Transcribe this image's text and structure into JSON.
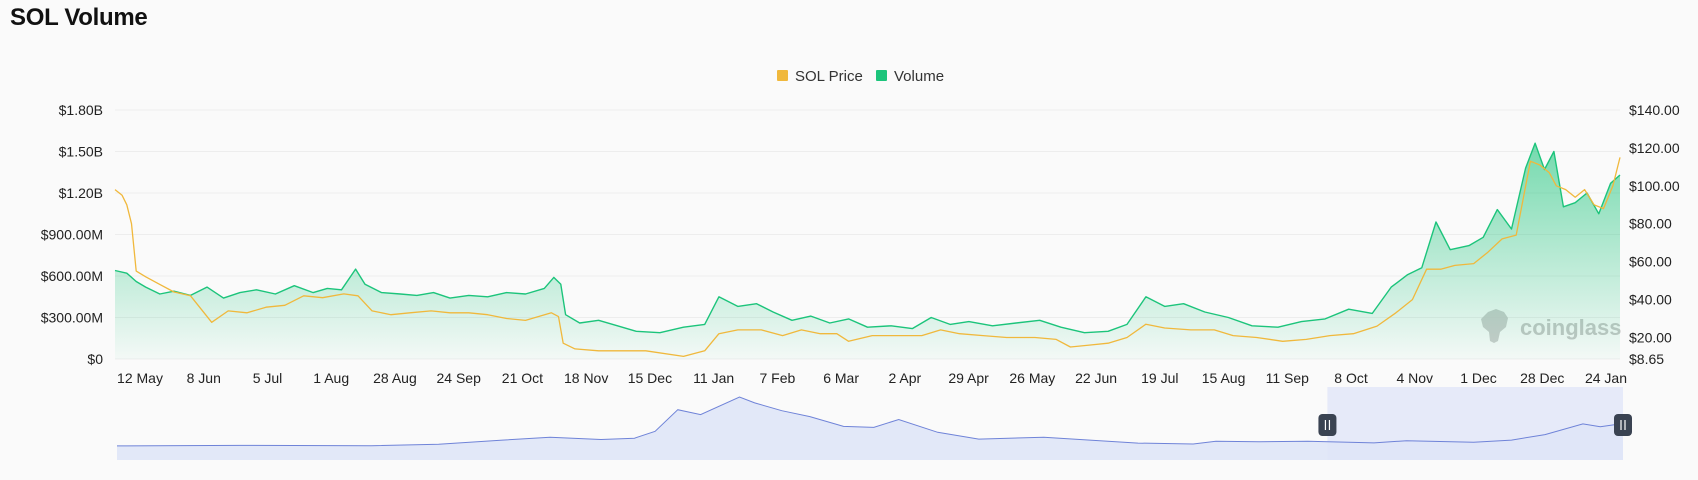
{
  "title": "SOL Volume",
  "watermark": "coinglass",
  "colors": {
    "price": "#f0b83c",
    "volume": "#1cc47b",
    "navigator_line": "#6f83d8",
    "navigator_fill": "#dfe5f7",
    "navigator_selected": "#e6eaf9",
    "grid": "#ededed",
    "background": "#fafafa"
  },
  "chart_data": {
    "type": "area",
    "title": "SOL Volume",
    "legend": {
      "position": "top-center",
      "entries": [
        "SOL Price",
        "Volume"
      ]
    },
    "grid": true,
    "x_tick_labels": [
      "12 May",
      "8 Jun",
      "5 Jul",
      "1 Aug",
      "28 Aug",
      "24 Sep",
      "21 Oct",
      "18 Nov",
      "15 Dec",
      "11 Jan",
      "7 Feb",
      "6 Mar",
      "2 Apr",
      "29 Apr",
      "26 May",
      "22 Jun",
      "19 Jul",
      "15 Aug",
      "11 Sep",
      "8 Oct",
      "4 Nov",
      "1 Dec",
      "28 Dec",
      "24 Jan"
    ],
    "y_left": {
      "label": "",
      "min": 0,
      "max": 1800000000,
      "ticks": [
        0,
        300000000,
        600000000,
        900000000,
        1200000000,
        1500000000,
        1800000000
      ],
      "tick_labels": [
        "$0",
        "$300.00M",
        "$600.00M",
        "$900.00M",
        "$1.20B",
        "$1.50B",
        "$1.80B"
      ]
    },
    "y_right": {
      "label": "",
      "min": 8.65,
      "max": 140,
      "ticks": [
        8.65,
        20,
        40,
        60,
        80,
        100,
        120,
        140
      ],
      "tick_labels": [
        "$8.65",
        "$20.00",
        "$40.00",
        "$60.00",
        "$80.00",
        "$100.00",
        "$120.00",
        "$140.00"
      ]
    },
    "x_range": [
      "2022-05-03",
      "2024-01-31"
    ],
    "series": [
      {
        "name": "Volume",
        "axis": "left",
        "style": "area",
        "points": [
          [
            "2022-05-03",
            640000000
          ],
          [
            "2022-05-08",
            620000000
          ],
          [
            "2022-05-12",
            560000000
          ],
          [
            "2022-05-16",
            520000000
          ],
          [
            "2022-05-22",
            470000000
          ],
          [
            "2022-05-28",
            490000000
          ],
          [
            "2022-06-04",
            460000000
          ],
          [
            "2022-06-11",
            520000000
          ],
          [
            "2022-06-18",
            440000000
          ],
          [
            "2022-06-25",
            480000000
          ],
          [
            "2022-07-02",
            500000000
          ],
          [
            "2022-07-10",
            470000000
          ],
          [
            "2022-07-18",
            530000000
          ],
          [
            "2022-07-26",
            480000000
          ],
          [
            "2022-08-01",
            510000000
          ],
          [
            "2022-08-07",
            500000000
          ],
          [
            "2022-08-13",
            650000000
          ],
          [
            "2022-08-17",
            540000000
          ],
          [
            "2022-08-24",
            480000000
          ],
          [
            "2022-09-01",
            470000000
          ],
          [
            "2022-09-08",
            460000000
          ],
          [
            "2022-09-15",
            480000000
          ],
          [
            "2022-09-22",
            440000000
          ],
          [
            "2022-09-30",
            460000000
          ],
          [
            "2022-10-08",
            450000000
          ],
          [
            "2022-10-16",
            480000000
          ],
          [
            "2022-10-24",
            470000000
          ],
          [
            "2022-11-01",
            510000000
          ],
          [
            "2022-11-05",
            590000000
          ],
          [
            "2022-11-08",
            540000000
          ],
          [
            "2022-11-10",
            320000000
          ],
          [
            "2022-11-16",
            260000000
          ],
          [
            "2022-11-24",
            280000000
          ],
          [
            "2022-12-02",
            240000000
          ],
          [
            "2022-12-10",
            200000000
          ],
          [
            "2022-12-20",
            190000000
          ],
          [
            "2022-12-30",
            230000000
          ],
          [
            "2023-01-08",
            250000000
          ],
          [
            "2023-01-14",
            450000000
          ],
          [
            "2023-01-22",
            380000000
          ],
          [
            "2023-01-30",
            400000000
          ],
          [
            "2023-02-06",
            340000000
          ],
          [
            "2023-02-14",
            280000000
          ],
          [
            "2023-02-22",
            310000000
          ],
          [
            "2023-03-02",
            260000000
          ],
          [
            "2023-03-10",
            290000000
          ],
          [
            "2023-03-18",
            230000000
          ],
          [
            "2023-03-28",
            240000000
          ],
          [
            "2023-04-06",
            220000000
          ],
          [
            "2023-04-14",
            300000000
          ],
          [
            "2023-04-22",
            250000000
          ],
          [
            "2023-04-30",
            270000000
          ],
          [
            "2023-05-10",
            240000000
          ],
          [
            "2023-05-20",
            260000000
          ],
          [
            "2023-05-30",
            280000000
          ],
          [
            "2023-06-08",
            230000000
          ],
          [
            "2023-06-18",
            190000000
          ],
          [
            "2023-06-28",
            200000000
          ],
          [
            "2023-07-06",
            250000000
          ],
          [
            "2023-07-14",
            450000000
          ],
          [
            "2023-07-22",
            380000000
          ],
          [
            "2023-07-30",
            400000000
          ],
          [
            "2023-08-08",
            340000000
          ],
          [
            "2023-08-18",
            300000000
          ],
          [
            "2023-08-28",
            240000000
          ],
          [
            "2023-09-08",
            230000000
          ],
          [
            "2023-09-18",
            270000000
          ],
          [
            "2023-09-28",
            290000000
          ],
          [
            "2023-10-08",
            360000000
          ],
          [
            "2023-10-18",
            330000000
          ],
          [
            "2023-10-26",
            520000000
          ],
          [
            "2023-11-02",
            610000000
          ],
          [
            "2023-11-08",
            660000000
          ],
          [
            "2023-11-14",
            990000000
          ],
          [
            "2023-11-20",
            790000000
          ],
          [
            "2023-11-28",
            820000000
          ],
          [
            "2023-12-04",
            880000000
          ],
          [
            "2023-12-10",
            1080000000
          ],
          [
            "2023-12-16",
            940000000
          ],
          [
            "2023-12-22",
            1380000000
          ],
          [
            "2023-12-26",
            1560000000
          ],
          [
            "2023-12-30",
            1370000000
          ],
          [
            "2024-01-03",
            1500000000
          ],
          [
            "2024-01-07",
            1100000000
          ],
          [
            "2024-01-12",
            1130000000
          ],
          [
            "2024-01-17",
            1200000000
          ],
          [
            "2024-01-22",
            1050000000
          ],
          [
            "2024-01-27",
            1270000000
          ],
          [
            "2024-01-31",
            1330000000
          ]
        ]
      },
      {
        "name": "SOL Price",
        "axis": "right",
        "style": "line",
        "points": [
          [
            "2022-05-03",
            98
          ],
          [
            "2022-05-06",
            95
          ],
          [
            "2022-05-08",
            90
          ],
          [
            "2022-05-10",
            80
          ],
          [
            "2022-05-12",
            55
          ],
          [
            "2022-05-16",
            52
          ],
          [
            "2022-05-22",
            48
          ],
          [
            "2022-05-28",
            44
          ],
          [
            "2022-06-04",
            42
          ],
          [
            "2022-06-13",
            28
          ],
          [
            "2022-06-20",
            34
          ],
          [
            "2022-06-28",
            33
          ],
          [
            "2022-07-06",
            36
          ],
          [
            "2022-07-14",
            37
          ],
          [
            "2022-07-22",
            42
          ],
          [
            "2022-07-30",
            41
          ],
          [
            "2022-08-08",
            43
          ],
          [
            "2022-08-14",
            42
          ],
          [
            "2022-08-20",
            34
          ],
          [
            "2022-08-28",
            32
          ],
          [
            "2022-09-05",
            33
          ],
          [
            "2022-09-14",
            34
          ],
          [
            "2022-09-22",
            33
          ],
          [
            "2022-09-30",
            33
          ],
          [
            "2022-10-08",
            32
          ],
          [
            "2022-10-16",
            30
          ],
          [
            "2022-10-24",
            29
          ],
          [
            "2022-11-04",
            33
          ],
          [
            "2022-11-07",
            31
          ],
          [
            "2022-11-09",
            17
          ],
          [
            "2022-11-14",
            14
          ],
          [
            "2022-11-24",
            13
          ],
          [
            "2022-12-04",
            13
          ],
          [
            "2022-12-14",
            13
          ],
          [
            "2022-12-30",
            10
          ],
          [
            "2023-01-08",
            13
          ],
          [
            "2023-01-14",
            22
          ],
          [
            "2023-01-22",
            24
          ],
          [
            "2023-02-01",
            24
          ],
          [
            "2023-02-10",
            21
          ],
          [
            "2023-02-18",
            24
          ],
          [
            "2023-02-26",
            22
          ],
          [
            "2023-03-05",
            22
          ],
          [
            "2023-03-10",
            18
          ],
          [
            "2023-03-20",
            21
          ],
          [
            "2023-04-01",
            21
          ],
          [
            "2023-04-10",
            21
          ],
          [
            "2023-04-18",
            24
          ],
          [
            "2023-04-26",
            22
          ],
          [
            "2023-05-06",
            21
          ],
          [
            "2023-05-16",
            20
          ],
          [
            "2023-05-28",
            20
          ],
          [
            "2023-06-06",
            19
          ],
          [
            "2023-06-12",
            15
          ],
          [
            "2023-06-20",
            16
          ],
          [
            "2023-06-28",
            17
          ],
          [
            "2023-07-06",
            20
          ],
          [
            "2023-07-14",
            27
          ],
          [
            "2023-07-22",
            25
          ],
          [
            "2023-08-02",
            24
          ],
          [
            "2023-08-12",
            24
          ],
          [
            "2023-08-20",
            21
          ],
          [
            "2023-08-30",
            20
          ],
          [
            "2023-09-10",
            18
          ],
          [
            "2023-09-20",
            19
          ],
          [
            "2023-09-30",
            21
          ],
          [
            "2023-10-10",
            22
          ],
          [
            "2023-10-20",
            26
          ],
          [
            "2023-10-28",
            33
          ],
          [
            "2023-11-04",
            40
          ],
          [
            "2023-11-10",
            56
          ],
          [
            "2023-11-16",
            56
          ],
          [
            "2023-11-22",
            58
          ],
          [
            "2023-11-30",
            59
          ],
          [
            "2023-12-06",
            65
          ],
          [
            "2023-12-12",
            72
          ],
          [
            "2023-12-18",
            74
          ],
          [
            "2023-12-24",
            113
          ],
          [
            "2023-12-28",
            111
          ],
          [
            "2024-01-01",
            107
          ],
          [
            "2024-01-04",
            100
          ],
          [
            "2024-01-08",
            98
          ],
          [
            "2024-01-12",
            94
          ],
          [
            "2024-01-16",
            98
          ],
          [
            "2024-01-20",
            90
          ],
          [
            "2024-01-24",
            88
          ],
          [
            "2024-01-28",
            100
          ],
          [
            "2024-01-31",
            115
          ]
        ]
      }
    ],
    "navigator": {
      "selected_range": [
        "2023-05-03",
        "2024-01-31"
      ],
      "series_name": "SOL Price",
      "points": [
        [
          "2020-04-10",
          0.7
        ],
        [
          "2020-08-01",
          3
        ],
        [
          "2020-12-01",
          1.5
        ],
        [
          "2021-02-01",
          9
        ],
        [
          "2021-04-01",
          30
        ],
        [
          "2021-05-15",
          45
        ],
        [
          "2021-07-01",
          33
        ],
        [
          "2021-08-01",
          40
        ],
        [
          "2021-08-20",
          75
        ],
        [
          "2021-09-10",
          185
        ],
        [
          "2021-10-01",
          160
        ],
        [
          "2021-11-06",
          250
        ],
        [
          "2021-11-20",
          220
        ],
        [
          "2021-12-15",
          180
        ],
        [
          "2022-01-10",
          150
        ],
        [
          "2022-02-10",
          100
        ],
        [
          "2022-03-10",
          95
        ],
        [
          "2022-04-02",
          135
        ],
        [
          "2022-05-08",
          70
        ],
        [
          "2022-06-15",
          35
        ],
        [
          "2022-08-14",
          45
        ],
        [
          "2022-11-09",
          15
        ],
        [
          "2022-12-30",
          10
        ],
        [
          "2023-01-20",
          24
        ],
        [
          "2023-03-01",
          22
        ],
        [
          "2023-04-15",
          24
        ],
        [
          "2023-06-15",
          16
        ],
        [
          "2023-07-15",
          27
        ],
        [
          "2023-09-15",
          19
        ],
        [
          "2023-10-20",
          30
        ],
        [
          "2023-11-20",
          58
        ],
        [
          "2023-12-25",
          113
        ],
        [
          "2024-01-10",
          98
        ],
        [
          "2024-01-31",
          115
        ]
      ]
    }
  }
}
